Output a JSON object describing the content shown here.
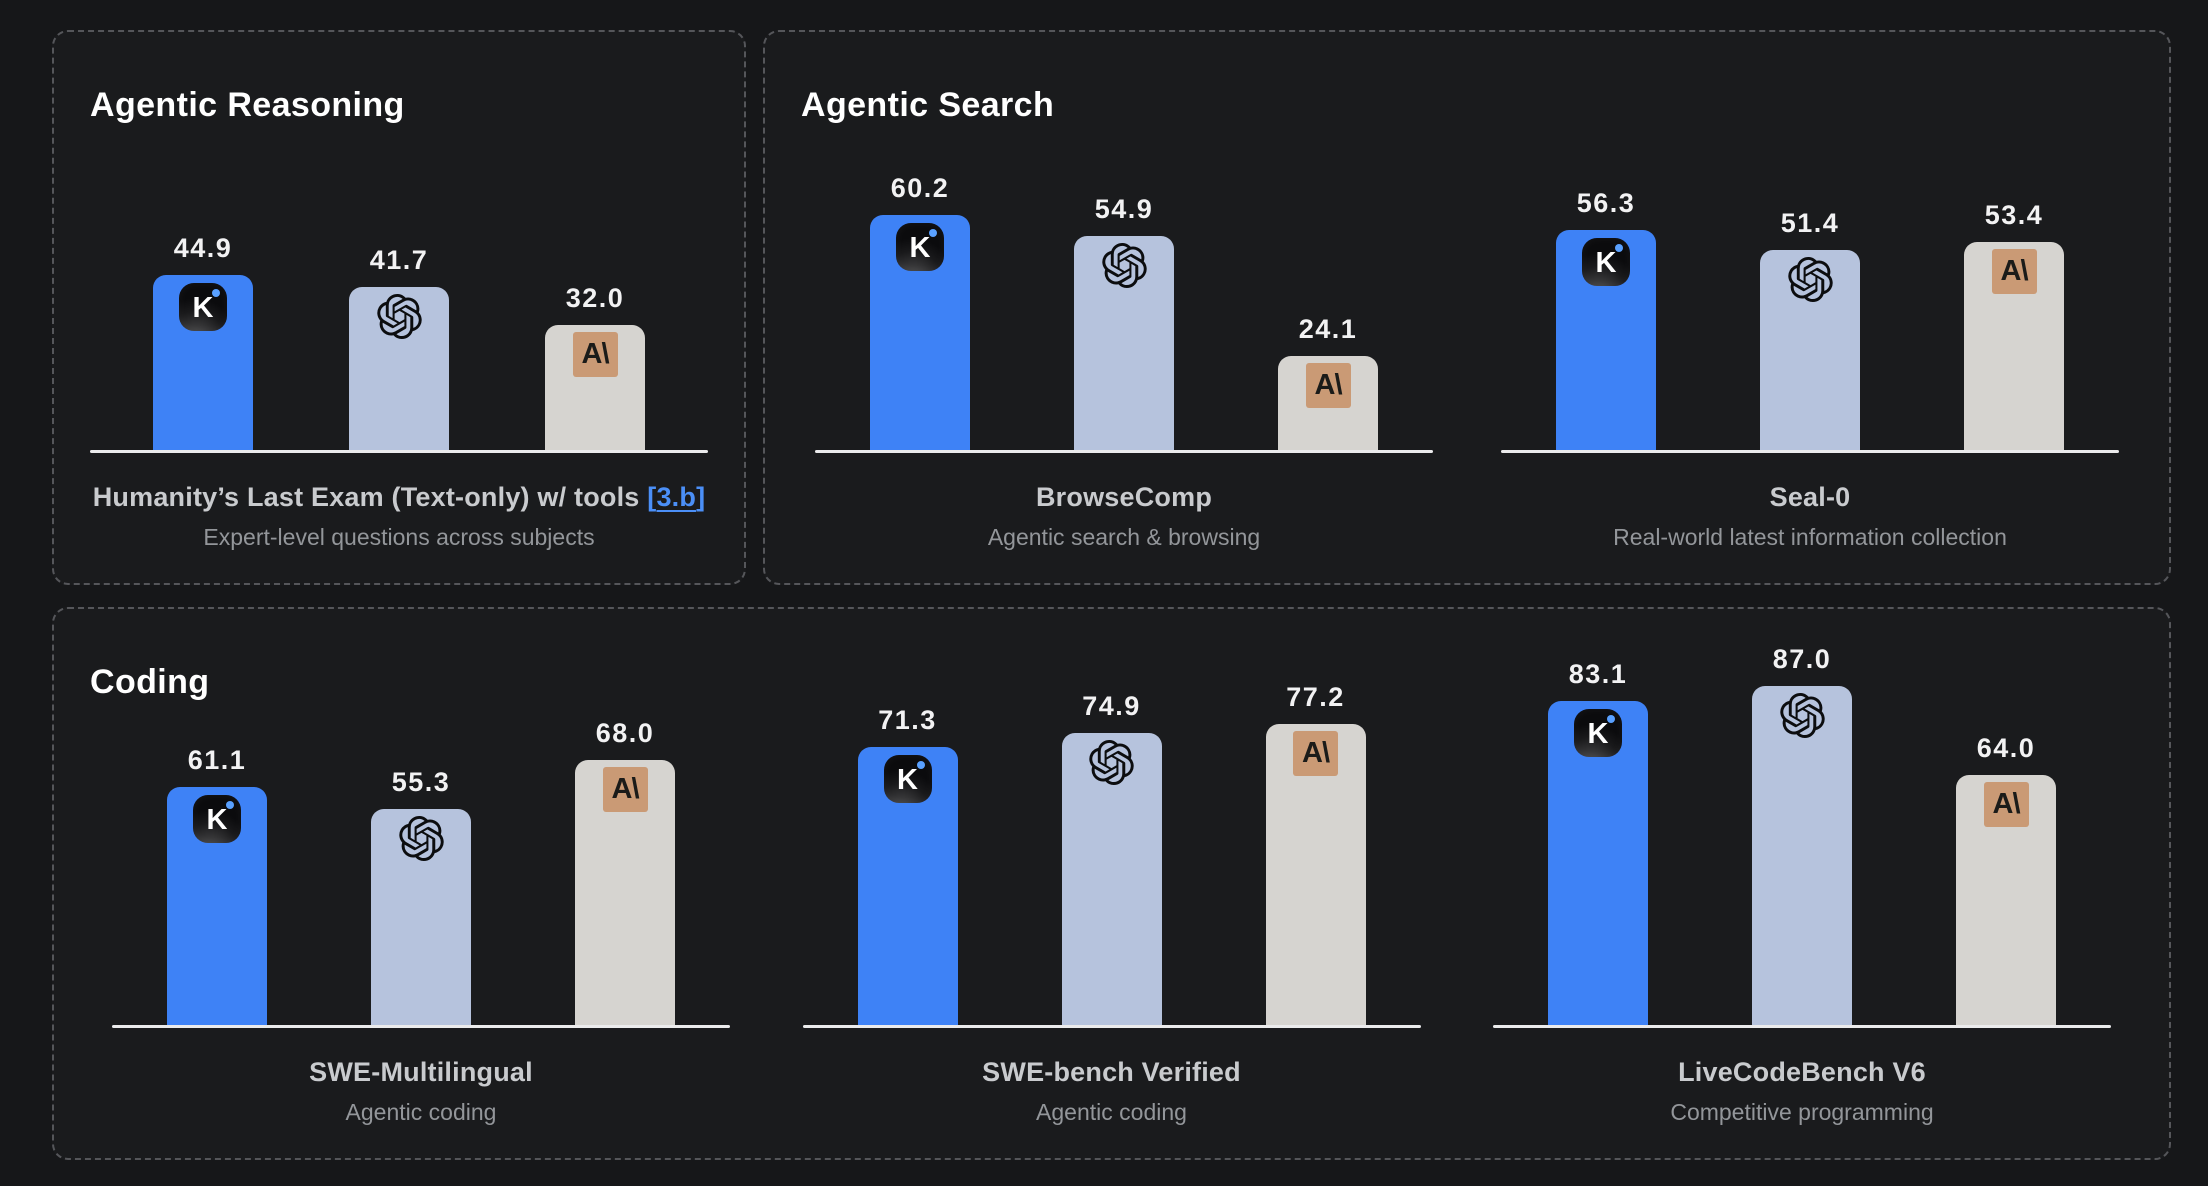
{
  "colors": {
    "kimi_bar": "#3e82f6",
    "openai_bar": "#b6c3dd",
    "anthropic_bar": "#d6d4d0",
    "anthropic_icon_bg": "#ca9a75",
    "link": "#4b8ff7",
    "axis": "#ebebec"
  },
  "icons": {
    "kimi_letter": "K",
    "anthropic_mark": "A\\"
  },
  "panels": [
    {
      "title": "Agentic Reasoning",
      "charts": [
        {
          "name": "Humanity’s Last Exam (Text-only) w/ tools",
          "link_label_open": "[",
          "link_label_inner": "3.b",
          "link_label_close": "]",
          "subtitle": "Expert-level questions across subjects",
          "bars": [
            {
              "model": "Kimi",
              "value": "44.9"
            },
            {
              "model": "OpenAI",
              "value": "41.7"
            },
            {
              "model": "Anthropic",
              "value": "32.0"
            }
          ]
        }
      ]
    },
    {
      "title": "Agentic Search",
      "charts": [
        {
          "name": "BrowseComp",
          "subtitle": "Agentic search & browsing",
          "bars": [
            {
              "model": "Kimi",
              "value": "60.2"
            },
            {
              "model": "OpenAI",
              "value": "54.9"
            },
            {
              "model": "Anthropic",
              "value": "24.1"
            }
          ]
        },
        {
          "name": "Seal-0",
          "subtitle": "Real-world latest information collection",
          "bars": [
            {
              "model": "Kimi",
              "value": "56.3"
            },
            {
              "model": "OpenAI",
              "value": "51.4"
            },
            {
              "model": "Anthropic",
              "value": "53.4"
            }
          ]
        }
      ]
    },
    {
      "title": "Coding",
      "charts": [
        {
          "name": "SWE-Multilingual",
          "subtitle": "Agentic coding",
          "bars": [
            {
              "model": "Kimi",
              "value": "61.1"
            },
            {
              "model": "OpenAI",
              "value": "55.3"
            },
            {
              "model": "Anthropic",
              "value": "68.0"
            }
          ]
        },
        {
          "name": "SWE-bench Verified",
          "subtitle": "Agentic coding",
          "bars": [
            {
              "model": "Kimi",
              "value": "71.3"
            },
            {
              "model": "OpenAI",
              "value": "74.9"
            },
            {
              "model": "Anthropic",
              "value": "77.2"
            }
          ]
        },
        {
          "name": "LiveCodeBench V6",
          "subtitle": "Competitive programming",
          "bars": [
            {
              "model": "Kimi",
              "value": "83.1"
            },
            {
              "model": "OpenAI",
              "value": "87.0"
            },
            {
              "model": "Anthropic",
              "value": "64.0"
            }
          ]
        }
      ]
    }
  ],
  "chart_data": [
    {
      "type": "bar",
      "panel": "Agentic Reasoning",
      "title": "Humanity’s Last Exam (Text-only) w/ tools [3.b]",
      "subtitle": "Expert-level questions across subjects",
      "categories": [
        "Kimi",
        "OpenAI",
        "Anthropic"
      ],
      "values": [
        44.9,
        41.7,
        32.0
      ],
      "ylim": [
        0,
        100
      ],
      "grid": false,
      "legend": "icons-on-bars"
    },
    {
      "type": "bar",
      "panel": "Agentic Search",
      "title": "BrowseComp",
      "subtitle": "Agentic search & browsing",
      "categories": [
        "Kimi",
        "OpenAI",
        "Anthropic"
      ],
      "values": [
        60.2,
        54.9,
        24.1
      ],
      "ylim": [
        0,
        100
      ],
      "grid": false,
      "legend": "icons-on-bars"
    },
    {
      "type": "bar",
      "panel": "Agentic Search",
      "title": "Seal-0",
      "subtitle": "Real-world latest information collection",
      "categories": [
        "Kimi",
        "OpenAI",
        "Anthropic"
      ],
      "values": [
        56.3,
        51.4,
        53.4
      ],
      "ylim": [
        0,
        100
      ],
      "grid": false,
      "legend": "icons-on-bars"
    },
    {
      "type": "bar",
      "panel": "Coding",
      "title": "SWE-Multilingual",
      "subtitle": "Agentic coding",
      "categories": [
        "Kimi",
        "OpenAI",
        "Anthropic"
      ],
      "values": [
        61.1,
        55.3,
        68.0
      ],
      "ylim": [
        0,
        100
      ],
      "grid": false,
      "legend": "icons-on-bars"
    },
    {
      "type": "bar",
      "panel": "Coding",
      "title": "SWE-bench Verified",
      "subtitle": "Agentic coding",
      "categories": [
        "Kimi",
        "OpenAI",
        "Anthropic"
      ],
      "values": [
        71.3,
        74.9,
        77.2
      ],
      "ylim": [
        0,
        100
      ],
      "grid": false,
      "legend": "icons-on-bars"
    },
    {
      "type": "bar",
      "panel": "Coding",
      "title": "LiveCodeBench V6",
      "subtitle": "Competitive programming",
      "categories": [
        "Kimi",
        "OpenAI",
        "Anthropic"
      ],
      "values": [
        83.1,
        87.0,
        64.0
      ],
      "ylim": [
        0,
        100
      ],
      "grid": false,
      "legend": "icons-on-bars"
    }
  ]
}
